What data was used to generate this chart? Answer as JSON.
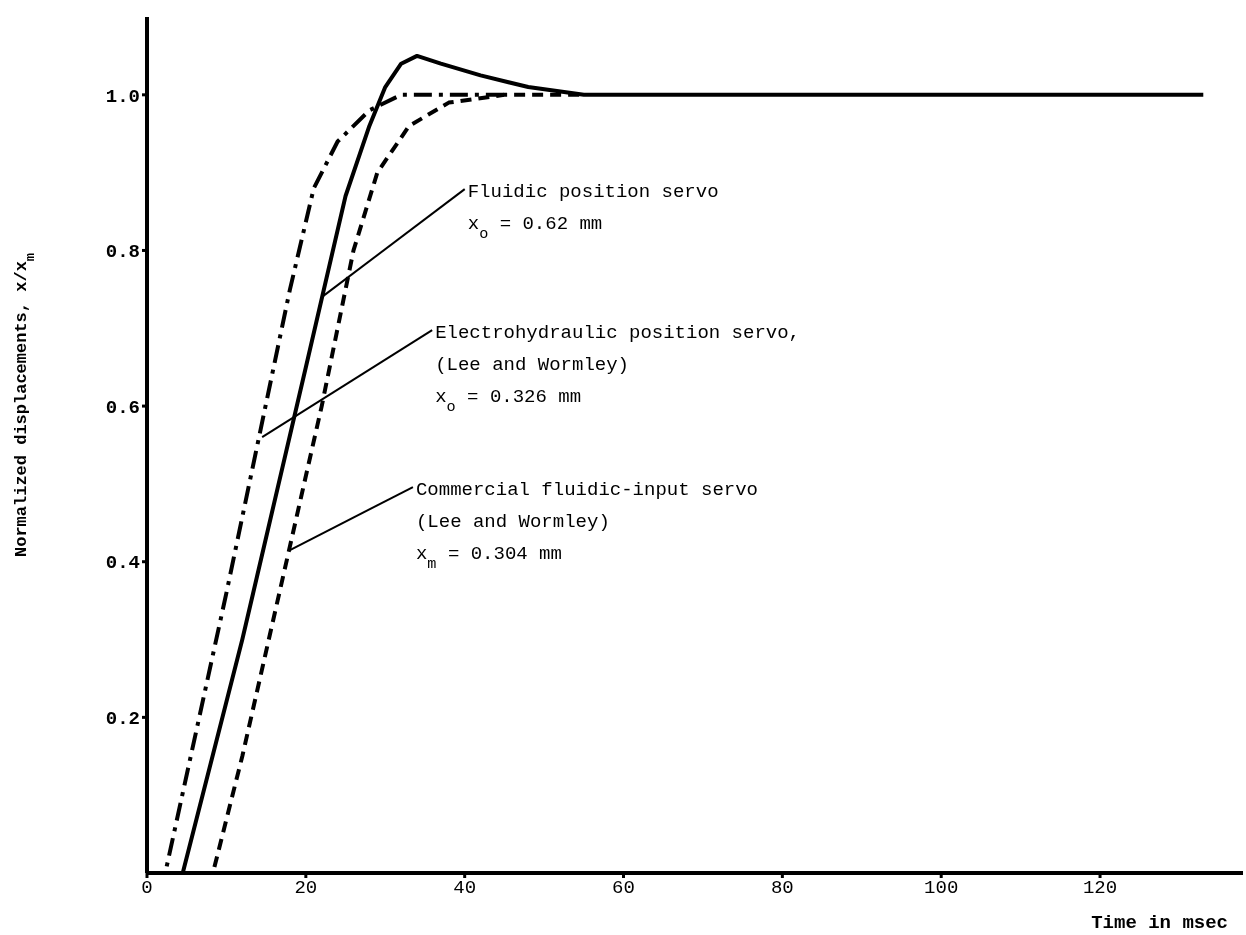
{
  "chart_data": {
    "type": "line",
    "xlabel": "Time in msec",
    "ylabel": "Normalized displacements, x/x$_{m}$",
    "xlim": [
      0,
      138
    ],
    "xticks": [
      0,
      20,
      40,
      60,
      80,
      100,
      120
    ],
    "ylim": [
      0,
      1.1
    ],
    "yticks": [
      {
        "value": 0.2,
        "label": "0.2"
      },
      {
        "value": 0.4,
        "label": "0.4"
      },
      {
        "value": 0.6,
        "label": "0.6"
      },
      {
        "value": 0.8,
        "label": "0.8"
      },
      {
        "value": 1,
        "label": "1.0"
      }
    ],
    "grid": false,
    "legend": false,
    "marker": "none",
    "series": [
      {
        "color": "#000000",
        "line_style": "solid",
        "x": [
          0,
          4.5,
          12,
          20,
          25,
          28,
          30,
          32,
          34,
          37,
          42,
          48,
          55,
          133
        ],
        "values": [
          0,
          0,
          0.3,
          0.65,
          0.87,
          0.96,
          1.01,
          1.04,
          1.05,
          1.04,
          1.025,
          1.01,
          1.0,
          1.0
        ]
      },
      {
        "color": "#000000",
        "line_style": "dashdot",
        "x": [
          0,
          2.3,
          10,
          18,
          21,
          24,
          28,
          32,
          45
        ],
        "values": [
          0,
          0,
          0.36,
          0.75,
          0.88,
          0.94,
          0.98,
          1.0,
          1.0
        ]
      },
      {
        "color": "#000000",
        "line_style": "dashed",
        "x": [
          0,
          8.3,
          12,
          18,
          22,
          26,
          29,
          33,
          38,
          45,
          55
        ],
        "values": [
          0,
          0,
          0.15,
          0.42,
          0.6,
          0.8,
          0.9,
          0.96,
          0.99,
          1.0,
          1.0
        ]
      }
    ],
    "annotations": [
      {
        "text": "Fluidic position servo\nx$_{o}$ = 0.62 mm",
        "x": 22,
        "y": 0.74
      },
      {
        "text": "Electrohydraulic position servo,\n(Lee and Wormley)\nx$_{o}$ = 0.326 mm",
        "x": 14.5,
        "y": 0.56
      },
      {
        "text": "Commercial fluidic-input servo\n(Lee and Wormley)\nx$_{m}$ = 0.304 mm",
        "x": 18,
        "y": 0.415
      }
    ]
  }
}
